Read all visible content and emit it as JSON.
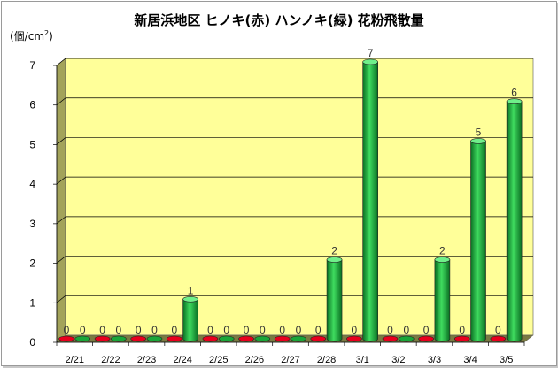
{
  "title": "新居浜地区 ヒノキ(赤) ハンノキ(緑) 花粉飛散量",
  "ylabel": "(個/cm",
  "ylabel_sup": "2",
  "ylabel_close": ")",
  "chart_data": {
    "type": "bar",
    "categories": [
      "2/21",
      "2/22",
      "2/23",
      "2/24",
      "2/25",
      "2/26",
      "2/27",
      "2/28",
      "3/1",
      "3/2",
      "3/3",
      "3/4",
      "3/5"
    ],
    "series": [
      {
        "values": [
          0,
          0,
          0,
          0,
          0,
          0,
          0,
          0,
          0,
          0,
          0,
          0,
          0
        ],
        "color": "#e8001e"
      },
      {
        "values": [
          0,
          0,
          0,
          1,
          0,
          0,
          0,
          2,
          7,
          0,
          2,
          5,
          6
        ],
        "color": "#1aa63a"
      }
    ],
    "ylim": [
      0,
      7
    ],
    "yticks": [
      0,
      1,
      2,
      3,
      4,
      5,
      6,
      7
    ],
    "grid": true,
    "colors": {
      "plot_bg": "#ffff99",
      "wall": "#a3a35a",
      "floor": "#7a7a42"
    }
  }
}
